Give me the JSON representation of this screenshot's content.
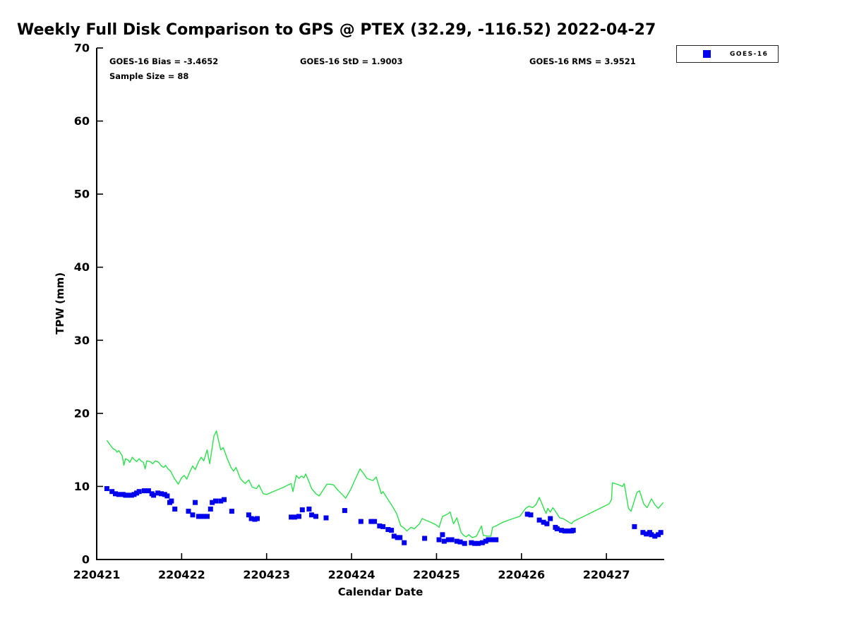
{
  "title": "Weekly Full Disk Comparison to GPS @ PTEX (32.29, -116.52) 2022-04-27",
  "annotations": {
    "bias": "GOES-16 Bias = -3.4652",
    "std": "GOES-16 StD = 1.9003",
    "rms": "GOES-16 RMS = 3.9521",
    "sample_size": "Sample Size = 88"
  },
  "stats_values": {
    "bias": -3.4652,
    "std": 1.9003,
    "rms": 3.9521,
    "sample_size": 88
  },
  "legend": {
    "entries": [
      {
        "label": "GOES-16",
        "marker": "square",
        "color": "#0000ee"
      }
    ]
  },
  "colors": {
    "gps_line": "#2ee04e",
    "goes16_marker": "#0000ee",
    "axis": "#000000",
    "background": "#ffffff"
  },
  "chart_data": {
    "type": "scatter",
    "title": "Weekly Full Disk Comparison to GPS @ PTEX (32.29, -116.52) 2022-04-27",
    "xlabel": "Calendar Date",
    "ylabel": "TPW (mm)",
    "x_tick_labels": [
      "220421",
      "220422",
      "220423",
      "220424",
      "220425",
      "220426",
      "220427"
    ],
    "y_ticks": [
      0,
      10,
      20,
      30,
      40,
      50,
      60,
      70
    ],
    "ylim": [
      0,
      70
    ],
    "xlim_days": [
      0,
      6.68
    ],
    "grid": false,
    "legend_position": "top-right-outside",
    "series": [
      {
        "name": "GPS",
        "type": "line",
        "color": "#2ee04e",
        "points": [
          [
            0.12,
            16.3
          ],
          [
            0.17,
            15.5
          ],
          [
            0.19,
            15.2
          ],
          [
            0.22,
            15.0
          ],
          [
            0.24,
            14.7
          ],
          [
            0.26,
            14.9
          ],
          [
            0.3,
            14.2
          ],
          [
            0.32,
            12.9
          ],
          [
            0.34,
            13.8
          ],
          [
            0.37,
            13.6
          ],
          [
            0.39,
            13.3
          ],
          [
            0.42,
            14.0
          ],
          [
            0.44,
            13.7
          ],
          [
            0.47,
            13.4
          ],
          [
            0.5,
            13.8
          ],
          [
            0.52,
            13.5
          ],
          [
            0.55,
            13.3
          ],
          [
            0.57,
            12.4
          ],
          [
            0.59,
            13.5
          ],
          [
            0.63,
            13.4
          ],
          [
            0.66,
            13.1
          ],
          [
            0.69,
            13.5
          ],
          [
            0.73,
            13.3
          ],
          [
            0.76,
            12.8
          ],
          [
            0.79,
            12.6
          ],
          [
            0.81,
            12.9
          ],
          [
            0.84,
            12.4
          ],
          [
            0.87,
            12.1
          ],
          [
            0.9,
            11.4
          ],
          [
            0.92,
            11.0
          ],
          [
            0.95,
            10.5
          ],
          [
            0.96,
            10.3
          ],
          [
            1.0,
            11.2
          ],
          [
            1.03,
            11.5
          ],
          [
            1.06,
            11.0
          ],
          [
            1.1,
            12.1
          ],
          [
            1.13,
            12.8
          ],
          [
            1.16,
            12.3
          ],
          [
            1.2,
            13.4
          ],
          [
            1.23,
            14.0
          ],
          [
            1.26,
            13.5
          ],
          [
            1.3,
            15.0
          ],
          [
            1.33,
            13.1
          ],
          [
            1.38,
            16.9
          ],
          [
            1.41,
            17.6
          ],
          [
            1.44,
            16.0
          ],
          [
            1.46,
            15.0
          ],
          [
            1.49,
            15.3
          ],
          [
            1.54,
            13.7
          ],
          [
            1.58,
            12.6
          ],
          [
            1.61,
            12.1
          ],
          [
            1.64,
            12.6
          ],
          [
            1.69,
            11.1
          ],
          [
            1.72,
            10.7
          ],
          [
            1.75,
            10.4
          ],
          [
            1.79,
            10.9
          ],
          [
            1.83,
            9.9
          ],
          [
            1.88,
            9.7
          ],
          [
            1.91,
            10.2
          ],
          [
            1.96,
            9.0
          ],
          [
            2.0,
            8.9
          ],
          [
            2.1,
            9.4
          ],
          [
            2.2,
            9.9
          ],
          [
            2.29,
            10.4
          ],
          [
            2.31,
            9.3
          ],
          [
            2.35,
            11.5
          ],
          [
            2.38,
            11.1
          ],
          [
            2.41,
            11.4
          ],
          [
            2.44,
            11.2
          ],
          [
            2.46,
            11.7
          ],
          [
            2.5,
            10.6
          ],
          [
            2.53,
            9.7
          ],
          [
            2.58,
            9.0
          ],
          [
            2.62,
            8.7
          ],
          [
            2.67,
            9.6
          ],
          [
            2.71,
            10.3
          ],
          [
            2.75,
            10.3
          ],
          [
            2.79,
            10.2
          ],
          [
            2.83,
            9.6
          ],
          [
            2.89,
            8.9
          ],
          [
            2.93,
            8.4
          ],
          [
            2.99,
            9.6
          ],
          [
            3.04,
            10.9
          ],
          [
            3.1,
            12.4
          ],
          [
            3.14,
            11.8
          ],
          [
            3.18,
            11.1
          ],
          [
            3.25,
            10.8
          ],
          [
            3.29,
            11.3
          ],
          [
            3.35,
            9.0
          ],
          [
            3.37,
            9.3
          ],
          [
            3.43,
            8.2
          ],
          [
            3.49,
            7.1
          ],
          [
            3.53,
            6.3
          ],
          [
            3.58,
            4.6
          ],
          [
            3.62,
            4.3
          ],
          [
            3.65,
            3.9
          ],
          [
            3.7,
            4.4
          ],
          [
            3.74,
            4.2
          ],
          [
            3.8,
            4.9
          ],
          [
            3.83,
            5.6
          ],
          [
            3.87,
            5.4
          ],
          [
            3.91,
            5.2
          ],
          [
            3.95,
            5.0
          ],
          [
            4.0,
            4.7
          ],
          [
            4.03,
            4.4
          ],
          [
            4.07,
            5.9
          ],
          [
            4.11,
            6.1
          ],
          [
            4.14,
            6.3
          ],
          [
            4.16,
            6.5
          ],
          [
            4.2,
            4.9
          ],
          [
            4.24,
            5.7
          ],
          [
            4.29,
            3.7
          ],
          [
            4.32,
            3.3
          ],
          [
            4.35,
            3.1
          ],
          [
            4.38,
            3.4
          ],
          [
            4.42,
            3.0
          ],
          [
            4.47,
            3.2
          ],
          [
            4.53,
            4.6
          ],
          [
            4.55,
            3.3
          ],
          [
            4.6,
            3.2
          ],
          [
            4.64,
            3.2
          ],
          [
            4.66,
            4.4
          ],
          [
            4.7,
            4.6
          ],
          [
            4.78,
            5.1
          ],
          [
            4.9,
            5.6
          ],
          [
            4.98,
            5.9
          ],
          [
            5.05,
            7.0
          ],
          [
            5.09,
            7.3
          ],
          [
            5.13,
            7.1
          ],
          [
            5.17,
            7.5
          ],
          [
            5.21,
            8.5
          ],
          [
            5.27,
            6.8
          ],
          [
            5.29,
            6.3
          ],
          [
            5.31,
            7.0
          ],
          [
            5.34,
            6.5
          ],
          [
            5.37,
            7.1
          ],
          [
            5.4,
            6.6
          ],
          [
            5.45,
            5.7
          ],
          [
            5.49,
            5.6
          ],
          [
            5.56,
            5.1
          ],
          [
            5.59,
            4.9
          ],
          [
            5.61,
            5.2
          ],
          [
            6.03,
            7.6
          ],
          [
            6.06,
            8.2
          ],
          [
            6.07,
            10.5
          ],
          [
            6.1,
            10.4
          ],
          [
            6.15,
            10.2
          ],
          [
            6.19,
            10.0
          ],
          [
            6.21,
            10.4
          ],
          [
            6.26,
            7.0
          ],
          [
            6.29,
            6.6
          ],
          [
            6.36,
            9.2
          ],
          [
            6.39,
            9.4
          ],
          [
            6.44,
            7.6
          ],
          [
            6.48,
            7.1
          ],
          [
            6.53,
            8.3
          ],
          [
            6.57,
            7.5
          ],
          [
            6.61,
            7.0
          ],
          [
            6.67,
            7.8
          ]
        ]
      },
      {
        "name": "GOES-16",
        "type": "scatter",
        "marker": "square",
        "color": "#0000ee",
        "points": [
          [
            0.12,
            9.7
          ],
          [
            0.18,
            9.3
          ],
          [
            0.22,
            9.0
          ],
          [
            0.26,
            8.9
          ],
          [
            0.31,
            8.9
          ],
          [
            0.34,
            8.8
          ],
          [
            0.37,
            8.8
          ],
          [
            0.41,
            8.8
          ],
          [
            0.44,
            8.9
          ],
          [
            0.47,
            9.1
          ],
          [
            0.5,
            9.3
          ],
          [
            0.56,
            9.4
          ],
          [
            0.61,
            9.4
          ],
          [
            0.65,
            9.0
          ],
          [
            0.67,
            8.8
          ],
          [
            0.72,
            9.1
          ],
          [
            0.76,
            9.0
          ],
          [
            0.8,
            8.9
          ],
          [
            0.83,
            8.7
          ],
          [
            0.86,
            7.8
          ],
          [
            0.88,
            8.0
          ],
          [
            0.92,
            6.9
          ],
          [
            1.08,
            6.6
          ],
          [
            1.13,
            6.1
          ],
          [
            1.16,
            7.8
          ],
          [
            1.2,
            5.9
          ],
          [
            1.23,
            5.9
          ],
          [
            1.26,
            5.9
          ],
          [
            1.3,
            5.9
          ],
          [
            1.34,
            6.9
          ],
          [
            1.36,
            7.8
          ],
          [
            1.4,
            8.0
          ],
          [
            1.46,
            8.0
          ],
          [
            1.5,
            8.2
          ],
          [
            1.59,
            6.6
          ],
          [
            1.79,
            6.1
          ],
          [
            1.82,
            5.6
          ],
          [
            1.86,
            5.5
          ],
          [
            1.89,
            5.6
          ],
          [
            2.29,
            5.8
          ],
          [
            2.33,
            5.8
          ],
          [
            2.38,
            5.9
          ],
          [
            2.42,
            6.8
          ],
          [
            2.5,
            6.9
          ],
          [
            2.53,
            6.1
          ],
          [
            2.58,
            5.9
          ],
          [
            2.7,
            5.7
          ],
          [
            2.92,
            6.7
          ],
          [
            3.11,
            5.2
          ],
          [
            3.23,
            5.2
          ],
          [
            3.27,
            5.2
          ],
          [
            3.33,
            4.6
          ],
          [
            3.37,
            4.5
          ],
          [
            3.43,
            4.1
          ],
          [
            3.47,
            4.0
          ],
          [
            3.5,
            3.2
          ],
          [
            3.54,
            3.0
          ],
          [
            3.57,
            3.0
          ],
          [
            3.62,
            2.3
          ],
          [
            3.86,
            2.9
          ],
          [
            4.03,
            2.7
          ],
          [
            4.07,
            3.4
          ],
          [
            4.09,
            2.5
          ],
          [
            4.14,
            2.7
          ],
          [
            4.18,
            2.7
          ],
          [
            4.24,
            2.5
          ],
          [
            4.28,
            2.4
          ],
          [
            4.33,
            2.2
          ],
          [
            4.41,
            2.3
          ],
          [
            4.45,
            2.2
          ],
          [
            4.49,
            2.2
          ],
          [
            4.54,
            2.3
          ],
          [
            4.58,
            2.5
          ],
          [
            4.61,
            2.7
          ],
          [
            4.66,
            2.7
          ],
          [
            4.7,
            2.7
          ],
          [
            5.07,
            6.2
          ],
          [
            5.11,
            6.1
          ],
          [
            5.21,
            5.4
          ],
          [
            5.26,
            5.1
          ],
          [
            5.3,
            4.9
          ],
          [
            5.34,
            5.6
          ],
          [
            5.4,
            4.4
          ],
          [
            5.42,
            4.2
          ],
          [
            5.47,
            4.0
          ],
          [
            5.51,
            3.9
          ],
          [
            5.55,
            3.9
          ],
          [
            5.59,
            3.9
          ],
          [
            5.61,
            4.0
          ],
          [
            6.33,
            4.5
          ],
          [
            6.43,
            3.7
          ],
          [
            6.47,
            3.5
          ],
          [
            6.51,
            3.7
          ],
          [
            6.53,
            3.4
          ],
          [
            6.57,
            3.2
          ],
          [
            6.61,
            3.4
          ],
          [
            6.64,
            3.7
          ]
        ]
      }
    ]
  }
}
